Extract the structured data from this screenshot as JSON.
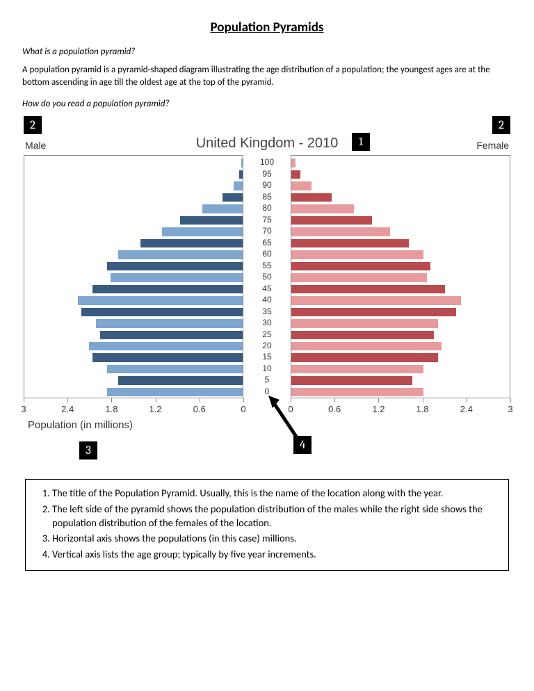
{
  "title": "Population Pyramids",
  "q1": "What is a population pyramid?",
  "p1": "A population pyramid is a pyramid-shaped diagram illustrating the age distribution of a population; the youngest ages are at the bottom ascending in age till the oldest age at the top of the pyramid.",
  "q2": "How do you read a population pyramid?",
  "badges": {
    "b1": "1",
    "b2": "2",
    "b3": "3",
    "b4": "4"
  },
  "chart": {
    "type": "population-pyramid",
    "title": "United Kingdom - 2010",
    "male_label": "Male",
    "female_label": "Female",
    "xaxis_title": "Population (in millions)",
    "age_labels": [
      "100",
      "95",
      "90",
      "85",
      "80",
      "75",
      "70",
      "65",
      "60",
      "55",
      "50",
      "45",
      "40",
      "35",
      "30",
      "25",
      "20",
      "15",
      "10",
      "5",
      "0"
    ],
    "xticks_male": [
      "3",
      "2.4",
      "1.8",
      "1.2",
      "0.6",
      "0"
    ],
    "xticks_female": [
      "0",
      "0.6",
      "1.2",
      "1.8",
      "2.4",
      "3"
    ],
    "xmax": 3,
    "male_values": [
      0.02,
      0.05,
      0.12,
      0.28,
      0.55,
      0.85,
      1.1,
      1.4,
      1.7,
      1.85,
      1.8,
      2.05,
      2.25,
      2.2,
      2.0,
      1.95,
      2.1,
      2.05,
      1.85,
      1.7,
      1.85
    ],
    "female_values": [
      0.06,
      0.12,
      0.28,
      0.55,
      0.85,
      1.1,
      1.35,
      1.6,
      1.8,
      1.9,
      1.85,
      2.1,
      2.32,
      2.25,
      2.0,
      1.95,
      2.05,
      2.0,
      1.8,
      1.65,
      1.8
    ],
    "male_dark": "#3b5a80",
    "male_light": "#7ea6cf",
    "female_dark": "#b84b4f",
    "female_light": "#e89b9e",
    "panel_border": "#888888",
    "background": "#ffffff"
  },
  "legend": {
    "i1": "The title of the Population Pyramid. Usually, this is the name of the location along with the year.",
    "i2": "The left side of the pyramid shows the population distribution of the males while the right side shows the population distribution of the females of the location.",
    "i3": "Horizontal axis shows the populations (in this case) millions.",
    "i4": "Vertical axis lists the age group; typically by five year increments."
  }
}
